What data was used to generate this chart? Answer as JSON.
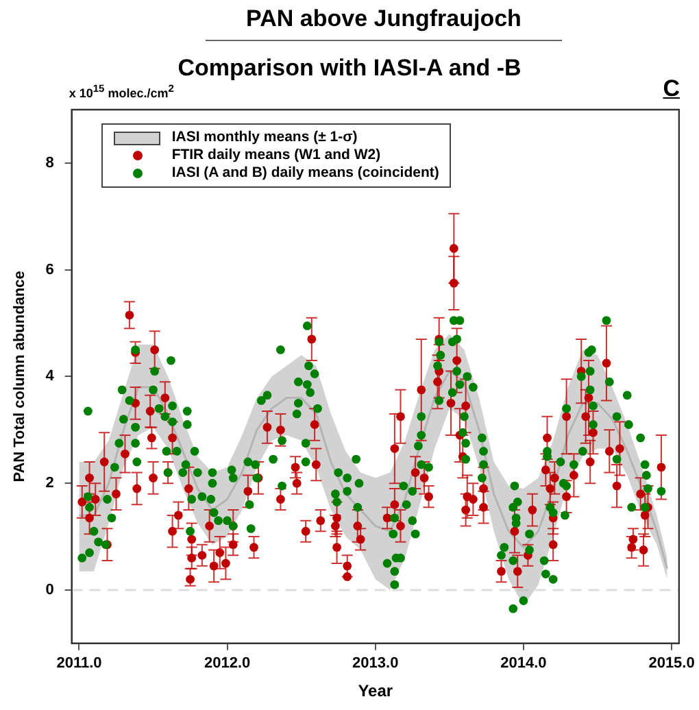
{
  "chart_data": {
    "type": "scatter",
    "title": "PAN above Jungfraujoch",
    "subtitle": "Comparison with IASI-A and -B",
    "xlabel": "Year",
    "ylabel": "PAN Total column abundance",
    "annotations": [
      "x 10$^{15}$ molec./cm$^{2}$",
      "C"
    ],
    "xlim": [
      2010.95,
      2015.05
    ],
    "xticks": [
      {
        "value": 2011,
        "label": "2011.0"
      },
      {
        "value": 2012,
        "label": "2012.0"
      },
      {
        "value": 2013,
        "label": "2013.0"
      },
      {
        "value": 2014,
        "label": "2014.0"
      },
      {
        "value": 2015,
        "label": "2015.0"
      }
    ],
    "ylim": [
      -1,
      9
    ],
    "yticks": [
      0,
      2,
      4,
      6,
      8
    ],
    "legend": "top left",
    "ref_lines": [
      {
        "axis": "y",
        "value": 0,
        "color": "#dddddd",
        "line_style": "dashed"
      }
    ],
    "series": [
      {
        "name": "IASI monthly means (± 1-σ)",
        "type": "line",
        "color": "#b4b4b4",
        "x": [
          2011.0,
          2011.1,
          2011.2,
          2011.3,
          2011.4,
          2011.5,
          2011.6,
          2011.7,
          2011.8,
          2011.9,
          2012.0,
          2012.1,
          2012.2,
          2012.3,
          2012.4,
          2012.5,
          2012.6,
          2012.7,
          2012.8,
          2012.9,
          2013.0,
          2013.1,
          2013.2,
          2013.3,
          2013.4,
          2013.5,
          2013.6,
          2013.7,
          2013.8,
          2013.9,
          2014.0,
          2014.1,
          2014.2,
          2014.3,
          2014.4,
          2014.5,
          2014.6,
          2014.7,
          2014.8,
          2014.9,
          2014.97
        ],
        "values": [
          1.4,
          1.4,
          2.0,
          3.0,
          3.8,
          3.8,
          3.3,
          2.6,
          1.9,
          1.5,
          1.7,
          2.2,
          3.0,
          3.4,
          3.6,
          3.6,
          3.3,
          2.4,
          1.8,
          1.5,
          1.2,
          1.1,
          1.7,
          2.7,
          3.6,
          4.1,
          3.9,
          3.0,
          1.8,
          1.1,
          0.8,
          1.1,
          1.9,
          2.9,
          3.5,
          3.5,
          3.2,
          2.6,
          1.9,
          1.1,
          0.4
        ],
        "upper": [
          2.4,
          2.4,
          2.8,
          3.7,
          4.6,
          4.6,
          4.0,
          3.2,
          2.5,
          2.2,
          2.3,
          2.9,
          3.6,
          4.0,
          4.2,
          4.4,
          4.2,
          3.3,
          2.6,
          2.2,
          2.1,
          2.2,
          2.8,
          3.7,
          4.5,
          4.8,
          4.5,
          3.6,
          2.4,
          1.95,
          1.9,
          2.1,
          2.8,
          3.8,
          4.5,
          4.4,
          3.8,
          3.1,
          2.3,
          1.4,
          0.6
        ],
        "lower": [
          0.35,
          0.35,
          1.25,
          2.3,
          2.9,
          3.05,
          2.65,
          1.9,
          1.25,
          0.85,
          1.0,
          1.5,
          2.3,
          2.8,
          2.9,
          2.8,
          2.3,
          1.5,
          1.0,
          0.75,
          0.2,
          0.0,
          0.6,
          1.6,
          2.65,
          3.4,
          3.2,
          2.3,
          1.1,
          0.2,
          -0.3,
          0.1,
          1.0,
          2.0,
          2.5,
          2.65,
          2.65,
          2.15,
          1.4,
          0.85,
          0.2
        ]
      },
      {
        "name": "FTIR daily means (W1 and W2)",
        "marker": "circle",
        "color": "#c00000",
        "x": [
          2011.34,
          2011.51,
          2011.38,
          2011.58,
          2011.48,
          2011.38,
          2011.49,
          2011.63,
          2011.6,
          2011.5,
          2011.31,
          2011.39,
          2011.17,
          2011.07,
          2011.02,
          2011.07,
          2011.25,
          2011.74,
          2011.67,
          2011.63,
          2011.76,
          2011.76,
          2011.75,
          2011.83,
          2011.91,
          2011.95,
          2011.99,
          2012.04,
          2012.04,
          2011.88,
          2012.14,
          2012.21,
          2012.27,
          2012.36,
          2012.18,
          2011.19,
          2011.11,
          2012.57,
          2012.46,
          2012.47,
          2012.36,
          2012.53,
          2012.63,
          2012.59,
          2012.6,
          2012.74,
          2012.73,
          2012.74,
          2012.81,
          2012.81,
          2012.88,
          2012.9,
          2013.17,
          2013.13,
          2013.08,
          2013.13,
          2013.17,
          2013.31,
          2013.27,
          2013.33,
          2013.36,
          2013.43,
          2013.42,
          2013.51,
          2013.53,
          2013.53,
          2013.55,
          2013.61,
          2013.59,
          2013.62,
          2013.61,
          2013.66,
          2013.73,
          2013.73,
          2013.43,
          2013.57,
          2013.85,
          2013.94,
          2013.96,
          2014.06,
          2014.03,
          2014.16,
          2014.15,
          2014.18,
          2014.2,
          2014.2,
          2014.21,
          2014.29,
          2014.29,
          2014.34,
          2014.39,
          2014.42,
          2014.44,
          2014.47,
          2014.45,
          2014.56,
          2014.58,
          2014.63,
          2014.65,
          2014.74,
          2014.73,
          2014.81,
          2014.79,
          2014.82,
          2014.84,
          2014.93
        ],
        "values": [
          5.15,
          4.5,
          4.45,
          3.6,
          3.35,
          3.5,
          2.85,
          2.85,
          2.2,
          2.1,
          2.55,
          1.9,
          2.4,
          2.1,
          1.65,
          1.35,
          1.8,
          1.9,
          1.4,
          1.1,
          0.95,
          0.6,
          0.2,
          0.65,
          0.45,
          0.7,
          0.5,
          1.2,
          0.85,
          1.2,
          1.85,
          2.1,
          3.05,
          3.0,
          0.8,
          0.85,
          1.7,
          4.7,
          2.3,
          2.0,
          1.7,
          1.1,
          1.3,
          3.1,
          2.35,
          1.35,
          1.2,
          0.8,
          0.45,
          0.25,
          1.2,
          0.95,
          3.25,
          2.65,
          1.35,
          1.6,
          1.2,
          3.75,
          2.2,
          2.1,
          1.75,
          4.7,
          3.9,
          3.5,
          6.4,
          5.75,
          4.3,
          3.45,
          2.5,
          1.75,
          1.5,
          1.7,
          1.9,
          1.55,
          4.1,
          2.9,
          0.35,
          1.1,
          0.35,
          1.5,
          0.65,
          2.85,
          2.25,
          1.9,
          1.35,
          0.85,
          2.1,
          3.25,
          1.75,
          2.15,
          4.1,
          3.25,
          3.6,
          2.95,
          2.4,
          4.25,
          2.6,
          1.95,
          2.65,
          0.95,
          0.8,
          0.75,
          1.8,
          1.4,
          1.55,
          2.3
        ],
        "errors": [
          0.25,
          0.35,
          0.2,
          0.3,
          0.3,
          0.3,
          0.2,
          0.3,
          0.2,
          0.3,
          0.35,
          0.3,
          0.55,
          0.3,
          0.3,
          0.3,
          0.3,
          0.4,
          0.25,
          0.3,
          0.3,
          0.2,
          [
            0.08,
            0.4
          ],
          0.2,
          0.3,
          0.3,
          0.3,
          0.3,
          0.2,
          0.3,
          0.3,
          0.3,
          0.3,
          0.3,
          0.2,
          0.3,
          0.3,
          0.4,
          0.2,
          0.2,
          0.2,
          0.2,
          0.2,
          0.3,
          0.3,
          0.3,
          0.2,
          0.3,
          0.2,
          null,
          0.3,
          0.2,
          0.5,
          0.65,
          0.2,
          0.3,
          0.3,
          0.95,
          0.3,
          0.3,
          0.2,
          0.4,
          0.5,
          0.6,
          0.65,
          0.5,
          0.6,
          0.5,
          0.4,
          0.4,
          0.3,
          0.3,
          0.4,
          0.3,
          0.5,
          0.5,
          0.2,
          0.4,
          0.3,
          0.3,
          0.2,
          0.4,
          0.3,
          0.3,
          0.3,
          0.3,
          0.3,
          0.7,
          0.3,
          0.4,
          0.6,
          0.5,
          0.7,
          0.4,
          0.4,
          0.7,
          0.4,
          0.4,
          0.5,
          0.2,
          0.2,
          0.3,
          0.3,
          0.4,
          0.4,
          0.6
        ]
      },
      {
        "name": "IASI (A and B) daily means (coincident)",
        "marker": "circle",
        "color": "#008000",
        "x": [
          2011.06,
          2011.02,
          2011.07,
          2011.1,
          2011.06,
          2011.07,
          2011.13,
          2011.18,
          2011.19,
          2011.22,
          2011.24,
          2011.27,
          2011.29,
          2011.3,
          2011.34,
          2011.38,
          2011.38,
          2011.38,
          2011.39,
          2011.5,
          2011.51,
          2011.54,
          2011.58,
          2011.59,
          2011.62,
          2011.63,
          2011.63,
          2011.66,
          2011.6,
          2011.73,
          2011.73,
          2011.7,
          2011.72,
          2011.76,
          2011.78,
          2011.8,
          2011.75,
          2011.83,
          2011.89,
          2011.9,
          2011.9,
          2011.91,
          2011.94,
          2012.03,
          2012.04,
          2012.04,
          2012.0,
          2012.14,
          2012.15,
          2012.16,
          2012.19,
          2012.2,
          2012.23,
          2012.27,
          2012.31,
          2012.36,
          2012.37,
          2012.54,
          2012.55,
          2012.48,
          2012.54,
          2012.59,
          2012.56,
          2012.48,
          2012.61,
          2012.47,
          2012.53,
          2012.53,
          2012.37,
          2012.75,
          2012.73,
          2012.74,
          2012.81,
          2012.81,
          2012.87,
          2012.89,
          2012.88,
          2013.12,
          2013.14,
          2013.13,
          2013.13,
          2013.08,
          2013.17,
          2013.13,
          2013.19,
          2013.21,
          2013.25,
          2013.25,
          2013.27,
          2013.29,
          2013.31,
          2013.31,
          2013.31,
          2013.36,
          2013.42,
          2013.43,
          2013.43,
          2013.44,
          2013.53,
          2013.57,
          2013.52,
          2013.55,
          2013.55,
          2013.57,
          2013.52,
          2013.62,
          2013.66,
          2013.6,
          2013.59,
          2013.61,
          2013.61,
          2013.72,
          2013.73,
          2013.73,
          2013.72,
          2013.94,
          2013.93,
          2013.96,
          2013.95,
          2013.95,
          2013.87,
          2013.85,
          2013.93,
          2014.04,
          2014.04,
          2013.93,
          2014.0,
          2014.14,
          2014.15,
          2014.2,
          2014.16,
          2014.16,
          2014.18,
          2014.2,
          2014.25,
          2014.27,
          2014.29,
          2014.28,
          2014.29,
          2014.34,
          2014.39,
          2014.4,
          2014.44,
          2014.46,
          2014.45,
          2014.45,
          2014.47,
          2014.47,
          2014.56,
          2014.58,
          2014.63,
          2014.63,
          2014.7,
          2014.71,
          2014.73,
          2014.79,
          2014.82,
          2014.83,
          2014.84,
          2014.82,
          2014.93
        ],
        "values": [
          3.35,
          0.6,
          0.7,
          1.1,
          1.75,
          1.55,
          0.9,
          0.85,
          1.7,
          1.35,
          2.3,
          2.75,
          3.75,
          3.2,
          3.55,
          3.05,
          4.5,
          2.75,
          2.4,
          3.75,
          4.1,
          3.4,
          3.25,
          2.6,
          4.3,
          3.45,
          3.15,
          2.6,
          2.2,
          3.35,
          3.1,
          2.2,
          2.35,
          1.7,
          2.6,
          2.2,
          1.1,
          1.75,
          1.7,
          2.2,
          2.0,
          1.45,
          1.3,
          2.25,
          2.1,
          1.2,
          1.3,
          2.4,
          1.6,
          1.15,
          2.35,
          2.1,
          3.55,
          3.65,
          2.45,
          4.5,
          2.8,
          4.95,
          4.2,
          3.9,
          3.85,
          4.05,
          3.7,
          3.5,
          3.4,
          3.3,
          2.75,
          2.4,
          1.95,
          2.2,
          1.8,
          1.65,
          2.1,
          1.85,
          2.45,
          2.0,
          1.55,
          1.05,
          0.6,
          0.35,
          0.1,
          0.5,
          0.6,
          1.35,
          1.95,
          1.6,
          1.85,
          1.3,
          1.05,
          2.7,
          2.9,
          3.25,
          2.35,
          2.3,
          4.2,
          3.55,
          4.65,
          4.4,
          5.05,
          5.05,
          4.65,
          4.7,
          4.1,
          3.85,
          3.7,
          4.0,
          3.8,
          3.25,
          2.95,
          2.75,
          2.45,
          2.85,
          2.6,
          2.35,
          2.1,
          1.95,
          1.55,
          1.65,
          1.35,
          1.25,
          0.8,
          0.65,
          0.55,
          1.05,
          0.75,
          -0.35,
          -0.2,
          0.55,
          0.3,
          0.2,
          2.6,
          2.5,
          1.55,
          1.45,
          2.4,
          2.0,
          1.95,
          1.4,
          3.4,
          2.35,
          4.0,
          2.6,
          4.45,
          4.5,
          4.1,
          3.75,
          3.45,
          3.1,
          5.05,
          3.9,
          3.25,
          2.45,
          3.65,
          3.1,
          1.55,
          2.85,
          2.35,
          2.15,
          1.9,
          1.55,
          1.85
        ]
      }
    ]
  }
}
